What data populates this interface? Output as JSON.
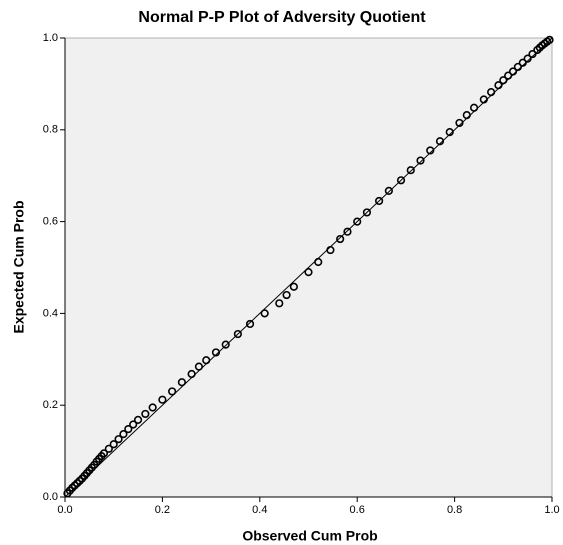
{
  "chart_data": {
    "type": "scatter",
    "title": "Normal P-P Plot of Adversity Quotient",
    "x_label": "Observed Cum Prob",
    "y_label": "Expected Cum Prob",
    "xlim": [
      0,
      1
    ],
    "ylim": [
      0,
      1
    ],
    "xticks": [
      {
        "value": 0,
        "label": "0.0"
      },
      0.2,
      0.4,
      0.6,
      0.8,
      {
        "value": 1,
        "label": "1.0"
      }
    ],
    "yticks": [
      {
        "value": 0,
        "label": "0.0"
      },
      0.2,
      0.4,
      0.6,
      0.8,
      {
        "value": 1,
        "label": "1.0"
      }
    ],
    "color": "#000000",
    "x": [
      0.005,
      0.01,
      0.015,
      0.02,
      0.025,
      0.03,
      0.035,
      0.04,
      0.045,
      0.05,
      0.055,
      0.06,
      0.065,
      0.07,
      0.075,
      0.08,
      0.09,
      0.1,
      0.11,
      0.12,
      0.13,
      0.14,
      0.15,
      0.165,
      0.18,
      0.2,
      0.22,
      0.24,
      0.26,
      0.275,
      0.29,
      0.31,
      0.33,
      0.355,
      0.38,
      0.41,
      0.44,
      0.455,
      0.47,
      0.5,
      0.52,
      0.545,
      0.565,
      0.58,
      0.6,
      0.62,
      0.645,
      0.665,
      0.69,
      0.71,
      0.73,
      0.75,
      0.77,
      0.79,
      0.81,
      0.825,
      0.84,
      0.86,
      0.875,
      0.89,
      0.9,
      0.91,
      0.92,
      0.93,
      0.94,
      0.95,
      0.96,
      0.97,
      0.975,
      0.98,
      0.985,
      0.99,
      0.995
    ],
    "values": [
      0.008,
      0.014,
      0.02,
      0.025,
      0.03,
      0.035,
      0.04,
      0.046,
      0.052,
      0.058,
      0.064,
      0.07,
      0.077,
      0.083,
      0.089,
      0.095,
      0.105,
      0.115,
      0.126,
      0.137,
      0.148,
      0.158,
      0.168,
      0.181,
      0.195,
      0.212,
      0.23,
      0.25,
      0.268,
      0.284,
      0.298,
      0.315,
      0.332,
      0.355,
      0.377,
      0.4,
      0.422,
      0.44,
      0.458,
      0.49,
      0.512,
      0.538,
      0.562,
      0.578,
      0.6,
      0.62,
      0.645,
      0.667,
      0.69,
      0.712,
      0.733,
      0.755,
      0.775,
      0.795,
      0.815,
      0.832,
      0.848,
      0.866,
      0.882,
      0.897,
      0.908,
      0.918,
      0.927,
      0.937,
      0.946,
      0.955,
      0.965,
      0.974,
      0.979,
      0.984,
      0.988,
      0.992,
      0.996
    ]
  }
}
